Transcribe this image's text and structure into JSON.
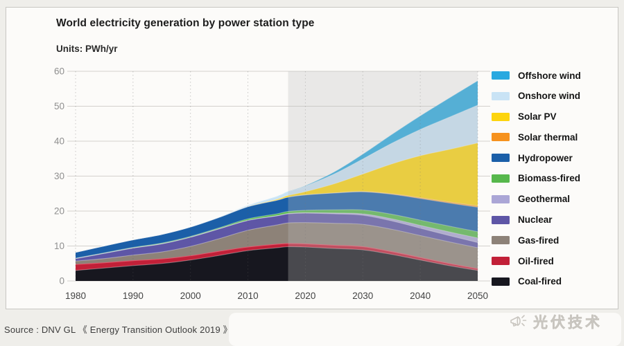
{
  "header": {
    "title": "World electricity generation by power station type",
    "units_label": "Units: PWh/yr"
  },
  "footer": {
    "source": "Source : DNV GL 《 Energy Transition Outlook 2019 》",
    "watermark": "光伏技术",
    "watermark_icon": "megaphone-icon"
  },
  "chart_data": {
    "type": "area",
    "stacked": true,
    "title": "World electricity generation by power station type",
    "ylabel": "PWh/yr",
    "xlabel": "",
    "ylim": [
      0,
      60
    ],
    "yticks": [
      0,
      10,
      20,
      30,
      40,
      50,
      60
    ],
    "xticks": [
      1980,
      1990,
      2000,
      2010,
      2020,
      2030,
      2040,
      2050
    ],
    "grid": "horizontal-solid, vertical-dotted",
    "legend_position": "right",
    "forecast_start": 2017,
    "forecast_overlay_color": "#bebebe",
    "x": [
      1980,
      1985,
      1990,
      1995,
      2000,
      2005,
      2010,
      2015,
      2017,
      2020,
      2025,
      2030,
      2035,
      2040,
      2045,
      2050
    ],
    "series": [
      {
        "name": "Coal-fired",
        "color": "#17171f",
        "values": [
          3.0,
          3.7,
          4.4,
          5.0,
          6.0,
          7.3,
          8.7,
          9.5,
          9.8,
          9.7,
          9.3,
          8.9,
          7.6,
          6.0,
          4.4,
          3.0
        ]
      },
      {
        "name": "Oil-fired",
        "color": "#c22038",
        "edge": "#e25a6e",
        "values": [
          1.7,
          1.5,
          1.4,
          1.3,
          1.2,
          1.2,
          1.0,
          1.0,
          0.9,
          0.9,
          0.9,
          0.9,
          0.8,
          0.7,
          0.6,
          0.5
        ]
      },
      {
        "name": "Gas-fired",
        "color": "#8d8278",
        "values": [
          1.0,
          1.2,
          1.6,
          2.0,
          2.7,
          3.6,
          4.8,
          5.5,
          5.9,
          6.1,
          6.3,
          6.4,
          6.4,
          6.3,
          6.2,
          6.0
        ]
      },
      {
        "name": "Nuclear",
        "color": "#5e56a6",
        "values": [
          0.7,
          1.5,
          2.0,
          2.3,
          2.6,
          2.8,
          2.8,
          2.6,
          2.6,
          2.7,
          2.7,
          2.6,
          2.4,
          2.1,
          1.8,
          1.5
        ]
      },
      {
        "name": "Geothermal",
        "color": "#aba6d6",
        "values": [
          0.01,
          0.02,
          0.04,
          0.05,
          0.05,
          0.06,
          0.07,
          0.08,
          0.09,
          0.12,
          0.25,
          0.4,
          0.6,
          0.8,
          1.05,
          1.3
        ]
      },
      {
        "name": "Biomass-fired",
        "color": "#57b84c",
        "values": [
          0.1,
          0.12,
          0.15,
          0.18,
          0.2,
          0.25,
          0.4,
          0.5,
          0.6,
          0.7,
          0.9,
          1.1,
          1.3,
          1.5,
          1.65,
          1.8
        ]
      },
      {
        "name": "Hydropower",
        "color": "#1b5fa8",
        "values": [
          1.7,
          2.0,
          2.2,
          2.5,
          2.7,
          3.0,
          3.5,
          3.9,
          4.1,
          4.4,
          4.8,
          5.2,
          5.7,
          6.2,
          6.6,
          7.0
        ]
      },
      {
        "name": "Solar thermal",
        "color": "#f6921e",
        "values": [
          0,
          0,
          0,
          0,
          0,
          0,
          0,
          0.01,
          0.01,
          0.02,
          0.05,
          0.1,
          0.17,
          0.25,
          0.32,
          0.4
        ]
      },
      {
        "name": "Solar PV",
        "color": "#fdd40e",
        "values": [
          0,
          0,
          0,
          0,
          0,
          0,
          0.03,
          0.25,
          0.45,
          0.9,
          2.6,
          5.0,
          8.5,
          12.0,
          15.0,
          18.0
        ]
      },
      {
        "name": "Onshore wind",
        "color": "#c9e3f5",
        "values": [
          0,
          0,
          0,
          0,
          0.03,
          0.1,
          0.34,
          0.8,
          1.1,
          1.6,
          2.8,
          4.3,
          5.9,
          7.5,
          9.2,
          10.8
        ]
      },
      {
        "name": "Offshore wind",
        "color": "#29a9e0",
        "values": [
          0,
          0,
          0,
          0,
          0,
          0,
          0.01,
          0.04,
          0.06,
          0.15,
          0.6,
          1.4,
          2.5,
          3.9,
          5.5,
          7.0
        ]
      }
    ]
  }
}
